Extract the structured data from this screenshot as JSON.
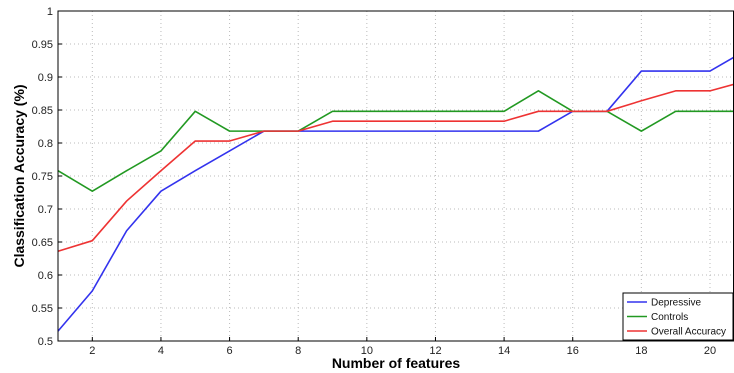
{
  "chart_data": {
    "type": "line",
    "title": "",
    "xlabel": "Number of features",
    "ylabel": "Classification Accuracy (%)",
    "xlim": [
      1,
      20.7
    ],
    "ylim": [
      0.5,
      1
    ],
    "xticks": [
      2,
      4,
      6,
      8,
      10,
      12,
      14,
      16,
      18,
      20
    ],
    "yticks": [
      0.5,
      0.55,
      0.6,
      0.65,
      0.7,
      0.75,
      0.8,
      0.85,
      0.9,
      0.95,
      1
    ],
    "grid": true,
    "legend_position": "bottom-right",
    "series": [
      {
        "name": "Depressive",
        "color": "#3333ee",
        "x": [
          1,
          2,
          3,
          4,
          5,
          6,
          7,
          8,
          9,
          10,
          11,
          12,
          13,
          14,
          15,
          16,
          17,
          18,
          19,
          20,
          20.7
        ],
        "y": [
          0.515,
          0.576,
          0.667,
          0.727,
          0.758,
          0.788,
          0.818,
          0.818,
          0.818,
          0.818,
          0.818,
          0.818,
          0.818,
          0.818,
          0.818,
          0.848,
          0.848,
          0.909,
          0.909,
          0.909,
          0.93
        ]
      },
      {
        "name": "Controls",
        "color": "#229922",
        "x": [
          1,
          2,
          3,
          4,
          5,
          6,
          7,
          8,
          9,
          10,
          11,
          12,
          13,
          14,
          15,
          16,
          17,
          18,
          19,
          20,
          20.7
        ],
        "y": [
          0.758,
          0.727,
          0.758,
          0.788,
          0.848,
          0.818,
          0.818,
          0.818,
          0.848,
          0.848,
          0.848,
          0.848,
          0.848,
          0.848,
          0.879,
          0.848,
          0.848,
          0.818,
          0.848,
          0.848,
          0.848
        ]
      },
      {
        "name": "Overall Accuracy",
        "color": "#ee3333",
        "x": [
          1,
          2,
          3,
          4,
          5,
          6,
          7,
          8,
          9,
          10,
          11,
          12,
          13,
          14,
          15,
          16,
          17,
          18,
          19,
          20,
          20.7
        ],
        "y": [
          0.636,
          0.652,
          0.712,
          0.758,
          0.803,
          0.803,
          0.818,
          0.818,
          0.833,
          0.833,
          0.833,
          0.833,
          0.833,
          0.833,
          0.848,
          0.848,
          0.848,
          0.864,
          0.879,
          0.879,
          0.889
        ]
      }
    ]
  }
}
